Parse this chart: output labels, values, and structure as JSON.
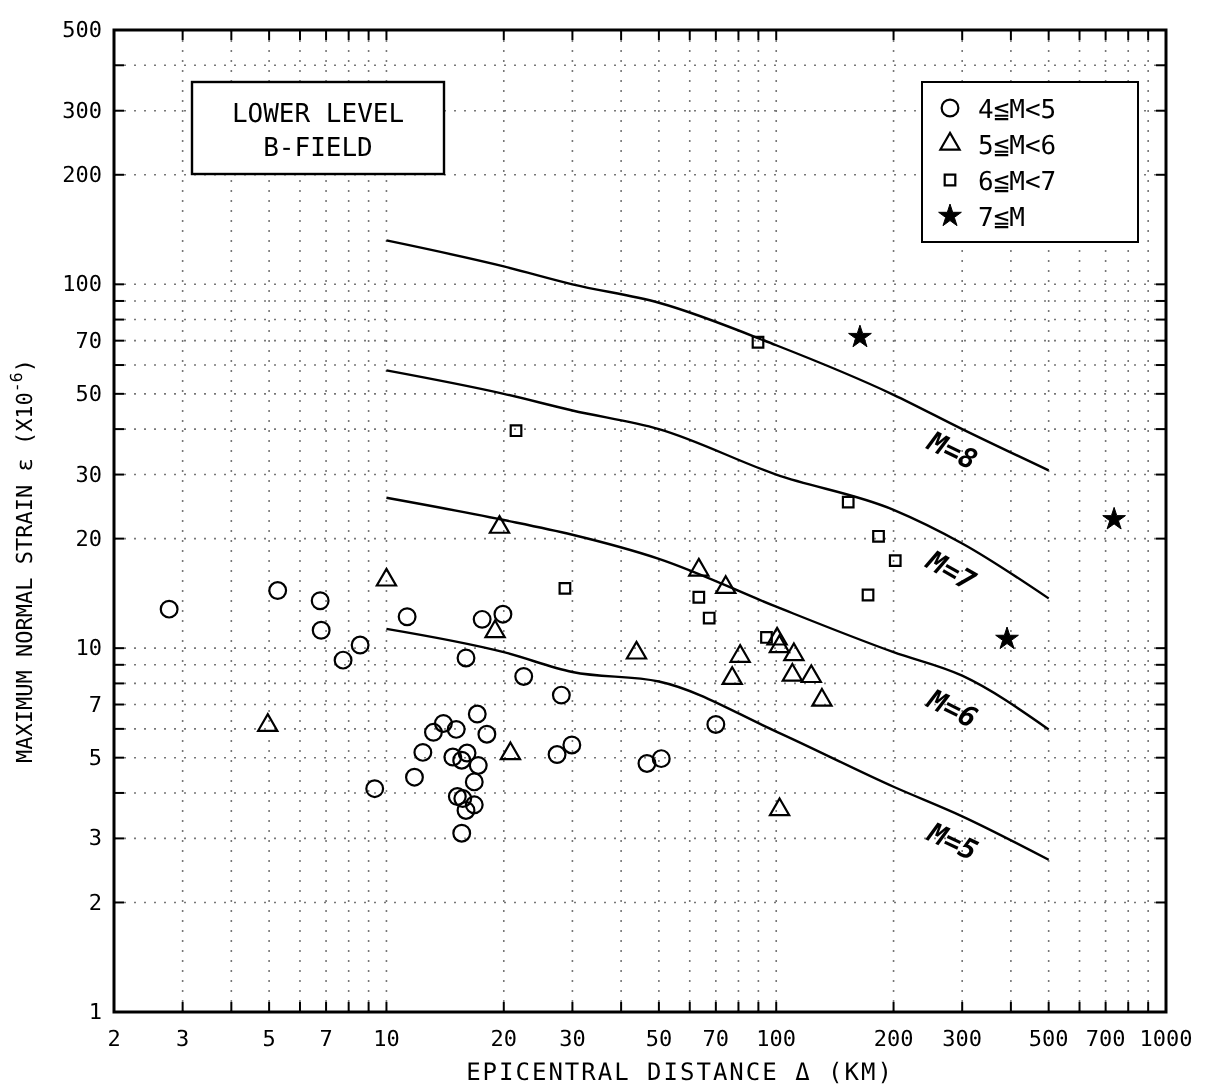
{
  "chart_data": {
    "type": "scatter",
    "title": "LOWER LEVEL\nB-FIELD",
    "xlabel": "EPICENTRAL DISTANCE  Δ (KM)",
    "ylabel": "MAXIMUM NORMAL STRAIN  ε (X10$^{-6}$)",
    "log": "xy",
    "grid": true,
    "legend": "top right",
    "xlim": [
      2,
      1000
    ],
    "ylim": [
      1,
      500
    ],
    "xticks": [
      2,
      3,
      {
        "value": 4,
        "label": null
      },
      5,
      {
        "value": 6,
        "label": null
      },
      7,
      {
        "value": 8,
        "label": null
      },
      {
        "value": 9,
        "label": null
      },
      10,
      20,
      30,
      {
        "value": 40,
        "label": null
      },
      50,
      {
        "value": 60,
        "label": null
      },
      70,
      {
        "value": 80,
        "label": null
      },
      {
        "value": 90,
        "label": null
      },
      100,
      200,
      300,
      {
        "value": 400,
        "label": null
      },
      500,
      {
        "value": 600,
        "label": null
      },
      700,
      {
        "value": 800,
        "label": null
      },
      {
        "value": 900,
        "label": null
      },
      1000
    ],
    "yticks": [
      1,
      2,
      3,
      {
        "value": 4,
        "label": null
      },
      5,
      {
        "value": 6,
        "label": null
      },
      7,
      {
        "value": 8,
        "label": null
      },
      {
        "value": 9,
        "label": null
      },
      10,
      20,
      30,
      {
        "value": 40,
        "label": null
      },
      50,
      {
        "value": 60,
        "label": null
      },
      70,
      {
        "value": 80,
        "label": null
      },
      {
        "value": 90,
        "label": null
      },
      100,
      200,
      300,
      {
        "value": 400,
        "label": null
      },
      500
    ],
    "series": [
      {
        "name": "4≦M<5",
        "marker": "circle",
        "color": "#000000",
        "x": [
          2.77,
          5.26,
          6.76,
          6.8,
          7.74,
          8.56,
          9.33,
          11.3,
          11.8,
          12.4,
          13.2,
          14,
          15.1,
          14.8,
          15.6,
          16.1,
          16,
          17.2,
          16.8,
          15.2,
          15.7,
          16.8,
          16,
          15.6,
          17.1,
          18.1,
          17.6,
          19.9,
          22.5,
          28.1,
          27.4,
          29.9,
          46.6,
          50.7,
          70
        ],
        "values": [
          12.8,
          14.4,
          13.5,
          11.2,
          9.27,
          10.2,
          4.11,
          12.2,
          4.42,
          5.17,
          5.87,
          6.21,
          5.98,
          5.02,
          4.92,
          5.15,
          9.4,
          4.76,
          4.29,
          3.91,
          3.86,
          3.71,
          3.58,
          3.1,
          6.59,
          5.8,
          12,
          12.4,
          8.36,
          7.43,
          5.1,
          5.42,
          4.82,
          4.97,
          6.17
        ]
      },
      {
        "name": "5≦M<6",
        "marker": "triangle",
        "color": "#000000",
        "x": [
          10,
          4.96,
          19,
          19.5,
          20.8,
          63.3,
          74.2,
          43.8,
          80.8,
          77.1,
          101.9,
          111,
          110,
          123,
          131,
          102,
          100.5
        ],
        "values": [
          15.4,
          6.14,
          11.1,
          21.5,
          5.13,
          16.4,
          14.7,
          9.7,
          9.5,
          8.26,
          10.1,
          9.6,
          8.43,
          8.36,
          7.2,
          3.6,
          10.6
        ]
      },
      {
        "name": "6≦M<7",
        "marker": "square",
        "color": "#000000",
        "x": [
          21.5,
          28.7,
          89.8,
          153,
          183,
          202,
          172,
          63.3,
          67.3,
          94.4
        ],
        "values": [
          39.6,
          14.6,
          69.3,
          25.2,
          20.3,
          17.4,
          14,
          13.8,
          12.1,
          10.7
        ]
      },
      {
        "name": "7≦M",
        "marker": "star",
        "color": "#000000",
        "x": [
          164,
          736,
          391
        ],
        "values": [
          71.6,
          22.6,
          10.6
        ]
      },
      {
        "name": "M=8",
        "type": "line",
        "marker": "none",
        "color": "#000000",
        "x": [
          10,
          20,
          30,
          50,
          100,
          200,
          300,
          500
        ],
        "values": [
          132,
          112,
          100,
          89,
          68,
          49.7,
          40,
          30.8
        ]
      },
      {
        "name": "M=7",
        "type": "line",
        "marker": "none",
        "color": "#000000",
        "x": [
          10,
          20,
          30,
          50,
          100,
          200,
          300,
          500
        ],
        "values": [
          58,
          50,
          45,
          40,
          30,
          24,
          19.4,
          13.7
        ]
      },
      {
        "name": "M=6",
        "type": "line",
        "marker": "none",
        "color": "#000000",
        "x": [
          10,
          20,
          30,
          50,
          100,
          200,
          300,
          500
        ],
        "values": [
          25.9,
          22.5,
          20.5,
          17.6,
          13,
          9.75,
          8.4,
          5.98
        ]
      },
      {
        "name": "M=5",
        "type": "line",
        "marker": "none",
        "color": "#000000",
        "x": [
          10,
          20,
          30,
          50,
          100,
          200,
          300,
          500
        ],
        "values": [
          11.3,
          9.75,
          8.6,
          8.1,
          5.9,
          4.16,
          3.45,
          2.62
        ]
      }
    ]
  }
}
